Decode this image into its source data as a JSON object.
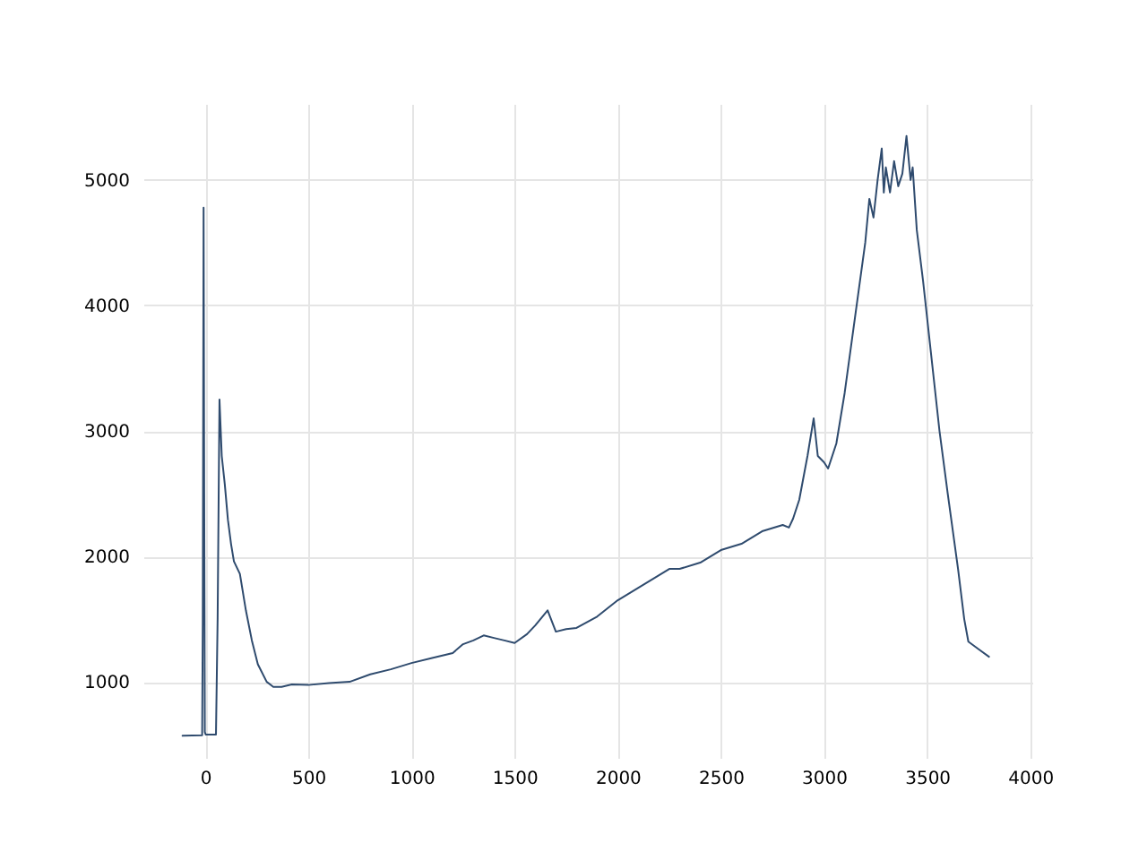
{
  "chart_data": {
    "type": "line",
    "grid": true,
    "xlim": [
      -300,
      4010
    ],
    "ylim": [
      394,
      5606
    ],
    "xticks": [
      0,
      500,
      1000,
      1500,
      2000,
      2500,
      3000,
      3500,
      4000
    ],
    "yticks": [
      1000,
      2000,
      3000,
      4000,
      5000
    ],
    "series": [
      {
        "color": "#2f4b6e",
        "x": [
          -110,
          -15,
          -12,
          -8,
          -5,
          -2,
          2,
          5,
          20,
          52,
          60,
          69,
          80,
          95,
          110,
          125,
          139,
          168,
          197,
          226,
          255,
          298,
          330,
          370,
          420,
          500,
          600,
          700,
          800,
          900,
          1000,
          1100,
          1200,
          1250,
          1300,
          1350,
          1400,
          1450,
          1500,
          1560,
          1600,
          1660,
          1700,
          1750,
          1800,
          1900,
          2000,
          2100,
          2200,
          2250,
          2300,
          2400,
          2500,
          2600,
          2700,
          2800,
          2830,
          2850,
          2880,
          2920,
          2950,
          2970,
          3000,
          3020,
          3060,
          3100,
          3150,
          3200,
          3220,
          3240,
          3260,
          3280,
          3290,
          3300,
          3320,
          3340,
          3360,
          3380,
          3400,
          3420,
          3430,
          3450,
          3480,
          3520,
          3560,
          3600,
          3650,
          3680,
          3700,
          3750,
          3800
        ],
        "values": [
          570,
          575,
          1500,
          4780,
          2500,
          600,
          580,
          580,
          580,
          580,
          1500,
          3250,
          2800,
          2570,
          2290,
          2100,
          1960,
          1860,
          1570,
          1330,
          1140,
          1000,
          960,
          960,
          980,
          975,
          990,
          1000,
          1060,
          1100,
          1150,
          1190,
          1230,
          1300,
          1330,
          1370,
          1350,
          1330,
          1310,
          1380,
          1450,
          1570,
          1400,
          1420,
          1430,
          1520,
          1650,
          1750,
          1850,
          1900,
          1900,
          1950,
          2050,
          2100,
          2200,
          2250,
          2230,
          2300,
          2450,
          2800,
          3100,
          2800,
          2750,
          2700,
          2900,
          3300,
          3900,
          4500,
          4850,
          4700,
          5000,
          5250,
          4900,
          5100,
          4900,
          5150,
          4950,
          5050,
          5350,
          5000,
          5100,
          4600,
          4200,
          3600,
          3000,
          2500,
          1900,
          1500,
          1320,
          1260,
          1200
        ]
      }
    ]
  }
}
